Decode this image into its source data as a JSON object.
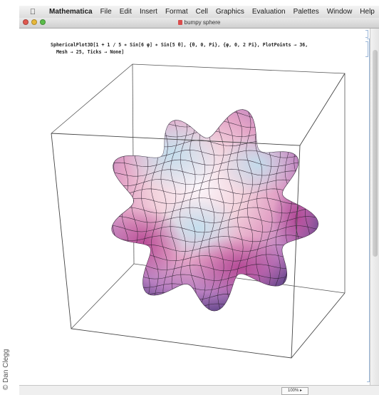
{
  "menubar": {
    "app_name": "Mathematica",
    "items": [
      "File",
      "Edit",
      "Insert",
      "Format",
      "Cell",
      "Graphics",
      "Evaluation",
      "Palettes",
      "Window",
      "Help"
    ]
  },
  "window": {
    "title": "bumpy sphere"
  },
  "input": {
    "line1": "SphericalPlot3D[1 + 1 / 5 ∗ Sin[6 φ] ∗ Sin[5 θ], {θ, 0, Pi}, {φ, 0, 2 Pi}, PlotPoints → 36,",
    "line2": "  Mesh → 25, Ticks → None]"
  },
  "status": {
    "zoom": "100% ▸"
  },
  "credit": "© Dan Clegg",
  "colors": {
    "window_bg": "#ffffff",
    "menubar": "#e6e6e6",
    "accent_close": "#e0584f",
    "accent_min": "#e8b83a",
    "accent_max": "#5bbd4a"
  }
}
